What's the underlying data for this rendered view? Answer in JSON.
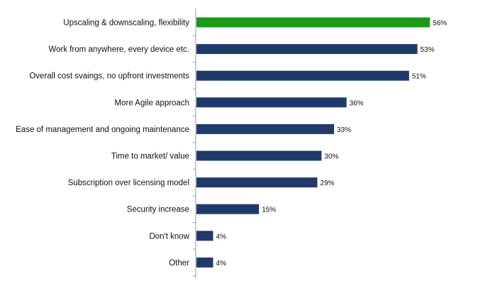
{
  "chart_data": {
    "type": "bar",
    "orientation": "horizontal",
    "categories": [
      "Upscaling & downscaling, flexibility",
      "Work from anywhere, every device etc.",
      "Overall cost svaings, no upfront investments",
      "More Agile approach",
      "Ease of management and ongoing maintenance",
      "Time to market/ value",
      "Subscription over licensing model",
      "Security increase",
      "Don't know",
      "Other"
    ],
    "values": [
      56,
      53,
      51,
      36,
      33,
      30,
      29,
      15,
      4,
      4
    ],
    "value_labels": [
      "56%",
      "53%",
      "51%",
      "36%",
      "33%",
      "30%",
      "29%",
      "15%",
      "4%",
      "4%"
    ],
    "unit": "%",
    "title": "",
    "xlabel": "",
    "ylabel": "",
    "xlim": [
      0,
      100
    ],
    "grid": false,
    "legend": "none",
    "colors": {
      "highlight": "#1a9a1a",
      "default": "#213a6b",
      "axis": "#999999"
    },
    "highlight_index": 0
  }
}
